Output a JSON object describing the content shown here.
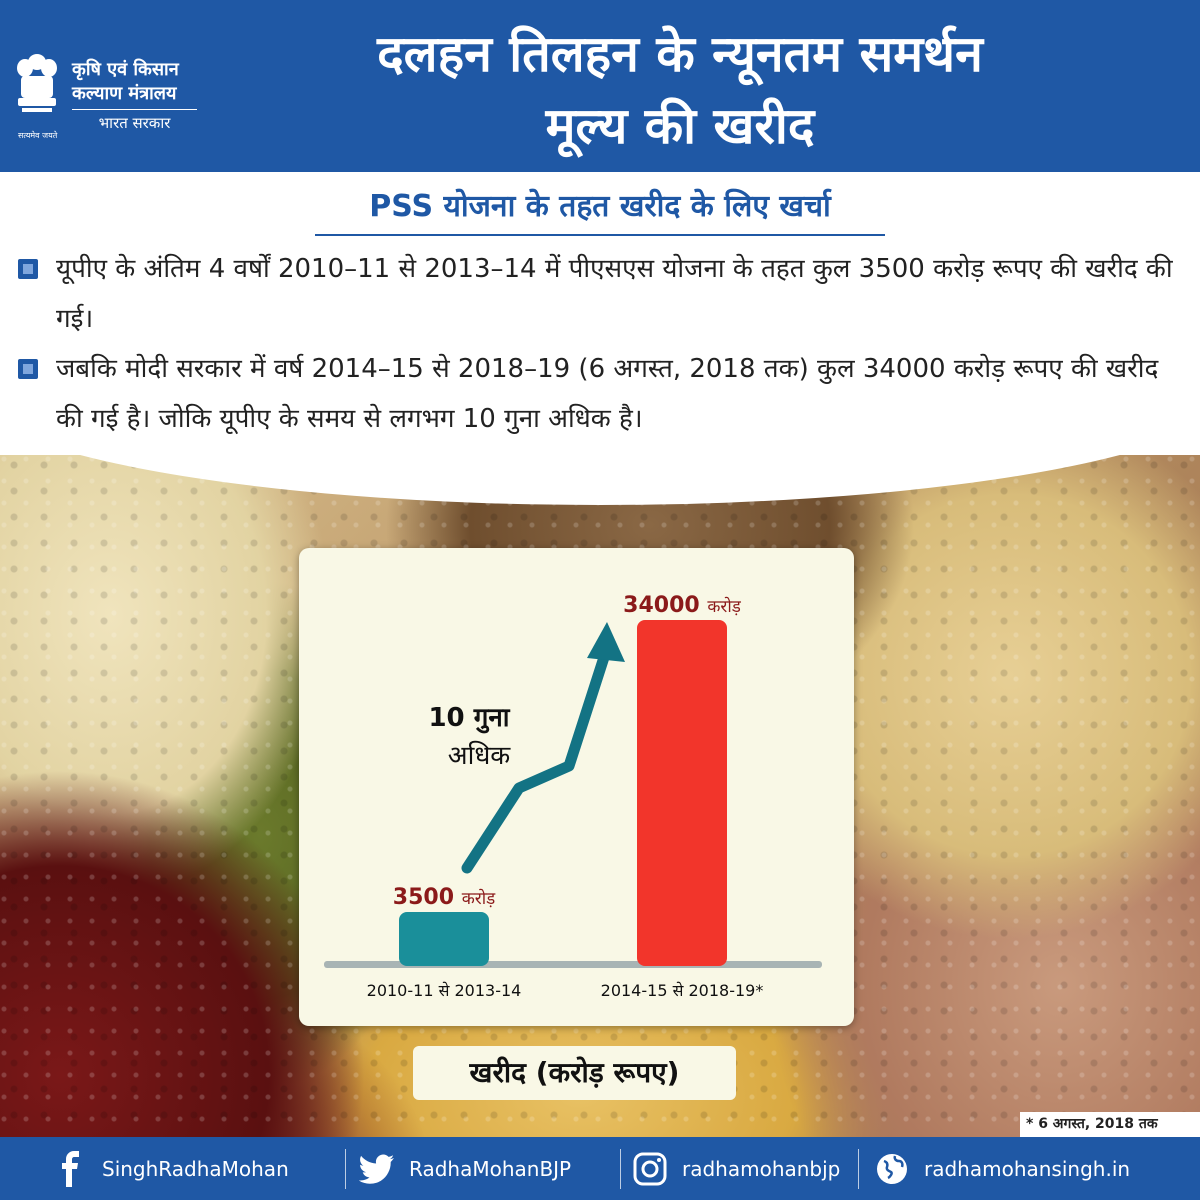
{
  "header": {
    "ministry_line1": "कृषि एवं किसान",
    "ministry_line2": "कल्याण मंत्रालय",
    "ministry_line3": "भारत सरकार",
    "motto": "सत्यमेव जयते",
    "headline_line1": "दलहन तिलहन के न्यूनतम समर्थन",
    "headline_line2": "मूल्य की खरीद"
  },
  "subtitle": "PSS योजना के तहत खरीद के लिए खर्चा",
  "bullets": [
    "यूपीए के अंतिम 4 वर्षों 2010–11 से 2013–14 में पीएसएस योजना के तहत कुल 3500 करोड़ रूपए की खरीद की गई।",
    "जबकि मोदी सरकार में वर्ष 2014–15 से 2018–19 (6 अगस्त, 2018 तक) कुल 34000 करोड़ रूपए की खरीद की गई है। जोकि यूपीए के समय से लगभग 10 गुना अधिक है।"
  ],
  "chart_data": {
    "type": "bar",
    "categories": [
      "2010-11 से 2013-14",
      "2014-15 से 2018-19*"
    ],
    "values": [
      3500,
      34000
    ],
    "value_labels": [
      "3500",
      "34000"
    ],
    "unit_label": "करोड़",
    "bar_colors": [
      "#1a8f9a",
      "#f2352b"
    ],
    "annotation_line1": "10 गुना",
    "annotation_line2": "अधिक",
    "arrow_color": "#137384",
    "caption": "खरीद (करोड़ रूपए)",
    "ylim": [
      0,
      34000
    ],
    "grid": false
  },
  "footnote": "* 6 अगस्त, 2018 तक",
  "footer": {
    "facebook": {
      "icon": "facebook-icon",
      "label": "SinghRadhaMohan"
    },
    "twitter": {
      "icon": "twitter-icon",
      "label": "RadhaMohanBJP"
    },
    "instagram": {
      "icon": "instagram-icon",
      "label": "radhamohanbjp"
    },
    "website": {
      "icon": "globe-icon",
      "label": "radhamohansingh.in"
    }
  },
  "colors": {
    "brand_blue": "#1f58a5",
    "value_text": "#8b1a1a"
  }
}
